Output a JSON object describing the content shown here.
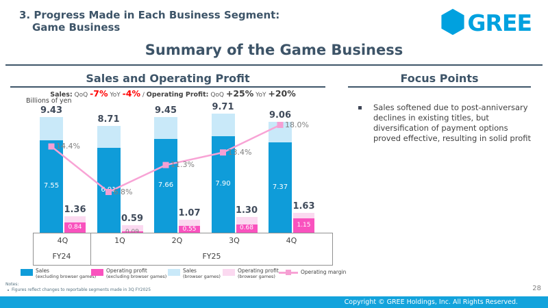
{
  "header": {
    "title_line1": "3. Progress Made in Each Business Segment:",
    "title_line2": "Game Business"
  },
  "logo": {
    "icon": "hexagon-icon",
    "text": "GREE",
    "color": "#00a1df"
  },
  "main_title": "Summary of the Game Business",
  "left": {
    "section_title": "Sales and Operating Profit",
    "stats": {
      "sales_label": "Sales:",
      "qoq_label": "QoQ",
      "sales_qoq_value": "-7%",
      "yoy_label": "YoY",
      "sales_yoy_value": "-4%",
      "separator": "/",
      "op_label": "Operating Profit:",
      "op_qoq_value": "+25%",
      "op_yoy_value": "+20%"
    },
    "unit_label": "Billions of yen"
  },
  "right": {
    "section_title": "Focus Points",
    "bullets": [
      "Sales softened due to post-anniversary declines in existing titles, but diversification of payment options proved effective, resulting in solid profit"
    ]
  },
  "legend": [
    {
      "swatch": "dark-blue-square",
      "line1": "Sales",
      "line2": "(excluding browser games)"
    },
    {
      "swatch": "bright-pink-square",
      "line1": "Operating profit",
      "line2": "(excluding browser games)"
    },
    {
      "swatch": "light-blue-square",
      "line1": "Sales",
      "line2": "(browser games)"
    },
    {
      "swatch": "light-pink-square",
      "line1": "Operating profit",
      "line2": "(browser games)"
    },
    {
      "swatch": "pink-line-marker",
      "line1": "Operating margin",
      "line2": ""
    }
  ],
  "notes": {
    "label": "Notes:",
    "items": [
      "Figures reflect changes to reportable segments made in 3Q FY2025"
    ]
  },
  "page_number": "28",
  "footer": {
    "copyright": "Copyright © GREE Holdings, Inc. All Rights Reserved."
  },
  "colors": {
    "heading_slate": "#3d5468",
    "brand_cyan": "#00a1df",
    "footer_bar": "#13a3dc",
    "negative_red": "#ff0000",
    "sales_excl_browser": "#0f9cd9",
    "sales_browser": "#c9e9f9",
    "op_excl_browser": "#f952be",
    "op_browser": "#fbd9f0",
    "operating_margin_line": "#f8a3d5"
  },
  "chart_data": {
    "type": "bar",
    "subtype": "stacked-bars-with-line",
    "title": "Sales and Operating Profit",
    "unit": "Billions of yen",
    "categories": [
      "4Q",
      "1Q",
      "2Q",
      "3Q",
      "4Q"
    ],
    "category_groups": [
      {
        "label": "FY24",
        "span": [
          0,
          0
        ]
      },
      {
        "label": "FY25",
        "span": [
          1,
          4
        ]
      }
    ],
    "series": [
      {
        "name": "Sales (excluding browser games)",
        "color": "#0f9cd9",
        "values": [
          7.55,
          6.91,
          7.66,
          7.9,
          7.37
        ]
      },
      {
        "name": "Sales (browser games)",
        "color": "#c9e9f9",
        "values": [
          1.88,
          1.8,
          1.79,
          1.81,
          1.69
        ]
      },
      {
        "name": "Operating profit (excluding browser games)",
        "color": "#f952be",
        "values": [
          0.84,
          0.09,
          0.55,
          0.68,
          1.15
        ]
      },
      {
        "name": "Operating profit (browser games)",
        "color": "#fbd9f0",
        "values": [
          0.52,
          0.5,
          0.52,
          0.62,
          0.48
        ]
      },
      {
        "name": "Operating margin",
        "type": "line",
        "color": "#f8a3d5",
        "values": [
          14.4,
          6.8,
          11.3,
          13.4,
          18.0
        ]
      }
    ],
    "totals": {
      "sales": [
        9.43,
        8.71,
        9.45,
        9.71,
        9.06
      ],
      "operating_profit": [
        1.36,
        0.59,
        1.07,
        1.3,
        1.63
      ]
    },
    "shown_labels": {
      "sales_totals": [
        "9.43",
        "8.71",
        "9.45",
        "9.71",
        "9.06"
      ],
      "sales_excl_browser": [
        "7.55",
        "6.91",
        "7.66",
        "7.90",
        "7.37"
      ],
      "op_totals": [
        "1.36",
        "0.59",
        "1.07",
        "1.30",
        "1.63"
      ],
      "op_excl_browser": [
        "0.84",
        "0.09",
        "0.55",
        "0.68",
        "1.15"
      ],
      "operating_margin": [
        "14.4%",
        "6.8%",
        "11.3%",
        "13.4%",
        "18.0%"
      ]
    },
    "legend_position": "bottom",
    "grid": false
  }
}
